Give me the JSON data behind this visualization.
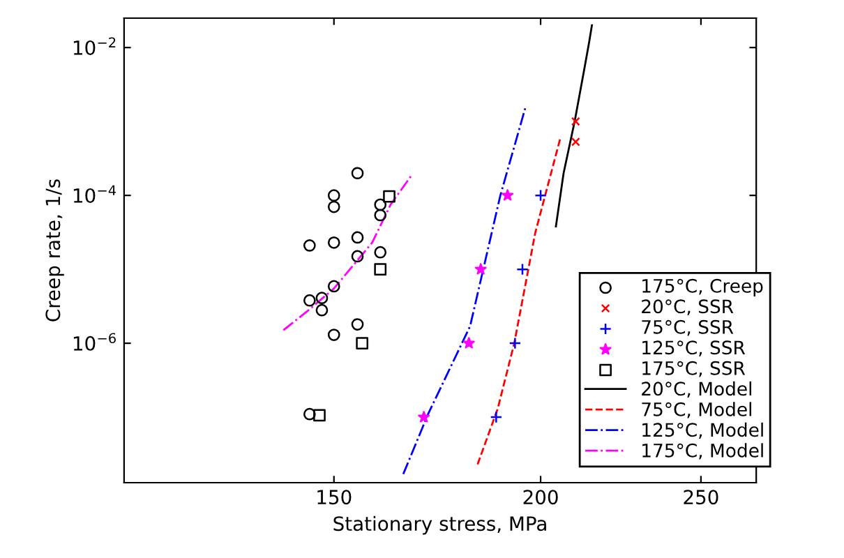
{
  "chart_data": {
    "type": "scatter",
    "xlabel": "Stationary stress, MPa",
    "ylabel": "Creep rate, 1/s",
    "log": "xy",
    "grid": false,
    "legend": "right",
    "xlim": [
      112,
      270
    ],
    "xticks": [
      150,
      200,
      250
    ],
    "ylim": [
      1.3e-08,
      0.025
    ],
    "yticks": [
      {
        "value": 0.01,
        "label": "10$^{−2}$"
      },
      {
        "value": 0.0001,
        "label": "10$^{−4}$"
      },
      {
        "value": 1e-06,
        "label": "10$^{−6}$"
      }
    ],
    "series": [
      {
        "name": "175°C, Creep",
        "marker": "circle",
        "color": "#000000",
        "x": [
          145,
          150,
          150,
          155,
          150,
          155,
          155,
          160,
          160,
          160,
          145,
          147.5,
          147.5,
          150,
          150,
          155,
          145
        ],
        "values": [
          2.1e-05,
          0.0001,
          7e-05,
          0.0002,
          2.3e-05,
          2.7e-05,
          1.5e-05,
          7.5e-05,
          5.4e-05,
          1.7e-05,
          3.8e-06,
          4.1e-06,
          2.8e-06,
          5.9e-06,
          1.3e-06,
          1.8e-06,
          1.1e-07
        ]
      },
      {
        "name": "20°C, SSR",
        "marker": "cross",
        "color": "#ff0000",
        "x": [
          210,
          210
        ],
        "values": [
          0.001,
          0.00053
        ]
      },
      {
        "name": "75°C, SSR",
        "marker": "plus",
        "color": "#0000ff",
        "x": [
          200,
          195,
          193,
          188
        ],
        "values": [
          0.0001,
          1e-05,
          1e-06,
          1e-07
        ]
      },
      {
        "name": "125°C, SSR",
        "marker": "star",
        "color": "#ff00ff",
        "x": [
          191,
          184,
          181,
          170
        ],
        "values": [
          0.0001,
          1e-05,
          1e-06,
          1e-07
        ]
      },
      {
        "name": "175°C, SSR",
        "marker": "square",
        "color": "#000000",
        "x": [
          162,
          160,
          156,
          147
        ],
        "values": [
          9.7e-05,
          1e-05,
          1e-06,
          1.06e-07
        ]
      },
      {
        "name": "20°C, Model",
        "type": "line",
        "line_style": "solid",
        "color": "#000000",
        "x": [
          204.3,
          206.5,
          209.7,
          212.5,
          214,
          214.8
        ],
        "values": [
          3.8e-05,
          0.0002,
          0.001,
          0.005,
          0.012,
          0.02
        ]
      },
      {
        "name": "75°C, Model",
        "type": "line",
        "line_style": "dashed",
        "color": "#ff0000",
        "x": [
          183.2,
          188.4,
          192.8,
          198.5,
          205.7
        ],
        "values": [
          2.3e-08,
          1.3e-07,
          1e-06,
          3.1e-05,
          0.00063
        ]
      },
      {
        "name": "125°C, Model",
        "type": "line",
        "line_style": "dashdot",
        "color": "#0000ff",
        "x": [
          165.2,
          171,
          181.3,
          189.1,
          195.9
        ],
        "values": [
          1.7e-08,
          1.1e-07,
          1.7e-06,
          0.0001,
          0.0016
        ]
      },
      {
        "name": "175°C, Model",
        "type": "line",
        "line_style": "dashdot",
        "color": "#ff00ff",
        "x": [
          139.8,
          144.5,
          150,
          158.2,
          162.3,
          167.2
        ],
        "values": [
          1.5e-06,
          2.7e-06,
          5.5e-06,
          2.3e-05,
          7.5e-05,
          0.00019
        ]
      }
    ]
  }
}
